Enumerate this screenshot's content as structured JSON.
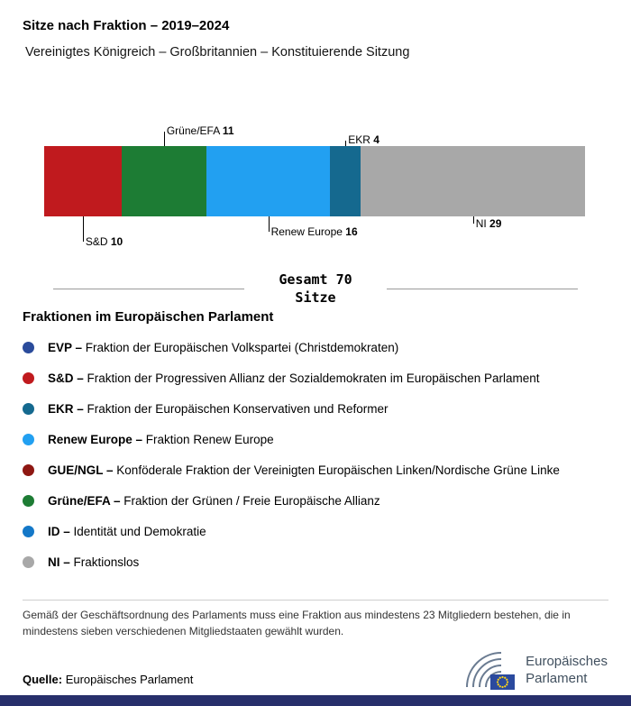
{
  "header": {
    "title": "Sitze nach Fraktion – 2019–2024",
    "subtitle": "Vereinigtes Königreich – Großbritannien – Konstituierende Sitzung"
  },
  "chart_data": {
    "type": "bar",
    "variant": "horizontal-stacked",
    "title": "Sitze nach Fraktion – 2019–2024",
    "subtitle": "Vereinigtes Königreich – Großbritannien – Konstituierende Sitzung",
    "total": 70,
    "unit": "Sitze",
    "total_label_line1": "Gesamt 70",
    "total_label_line2": "Sitze",
    "series": [
      {
        "id": "sd",
        "name": "S&D",
        "value": 10,
        "color": "#c01a1e",
        "label": {
          "side": "below",
          "level": 3
        }
      },
      {
        "id": "gruene-efa",
        "name": "Grüne/EFA",
        "value": 11,
        "color": "#1d7c34",
        "label": {
          "side": "above",
          "level": 2
        }
      },
      {
        "id": "renew-europe",
        "name": "Renew Europe",
        "value": 16,
        "color": "#22a0f1",
        "label": {
          "side": "below",
          "level": 2
        }
      },
      {
        "id": "ekr",
        "name": "EKR",
        "value": 4,
        "color": "#15698f",
        "label": {
          "side": "above",
          "level": 1
        }
      },
      {
        "id": "ni",
        "name": "NI",
        "value": 29,
        "color": "#a8a8a8",
        "label": {
          "side": "below",
          "level": 1
        }
      }
    ]
  },
  "legend": {
    "heading": "Fraktionen im Europäischen Parlament",
    "items": [
      {
        "id": "evp",
        "abbr": "EVP –",
        "desc": "Fraktion der Europäischen Volkspartei (Christdemokraten)",
        "color": "#2a4b9b"
      },
      {
        "id": "sd",
        "abbr": "S&D –",
        "desc": "Fraktion der Progressiven Allianz der Sozialdemokraten im Europäischen Parlament",
        "color": "#c01a1e"
      },
      {
        "id": "ekr",
        "abbr": "EKR –",
        "desc": "Fraktion der Europäischen Konservativen und Reformer",
        "color": "#15698f"
      },
      {
        "id": "renew-europe",
        "abbr": "Renew Europe –",
        "desc": "Fraktion Renew Europe",
        "color": "#22a0f1"
      },
      {
        "id": "gue-ngl",
        "abbr": "GUE/NGL –",
        "desc": "Konföderale Fraktion der Vereinigten Europäischen Linken/Nordische Grüne Linke",
        "color": "#8e1712"
      },
      {
        "id": "gruene-efa",
        "abbr": "Grüne/EFA –",
        "desc": "Fraktion der Grünen / Freie Europäische Allianz",
        "color": "#1d7c34"
      },
      {
        "id": "id",
        "abbr": "ID –",
        "desc": "Identität und Demokratie",
        "color": "#1478c8"
      },
      {
        "id": "ni",
        "abbr": "NI –",
        "desc": "Fraktionslos",
        "color": "#a8a8a8"
      }
    ]
  },
  "footnote": "Gemäß der Geschäftsordnung des Parlaments muss eine Fraktion aus mindestens 23 Mitgliedern bestehen, die in mindestens sieben verschiedenen Mitgliedstaaten gewählt wurden.",
  "source": {
    "label": "Quelle:",
    "text": "Europäisches Parlament"
  },
  "logo": {
    "line1": "Europäisches",
    "line2": "Parlament"
  }
}
